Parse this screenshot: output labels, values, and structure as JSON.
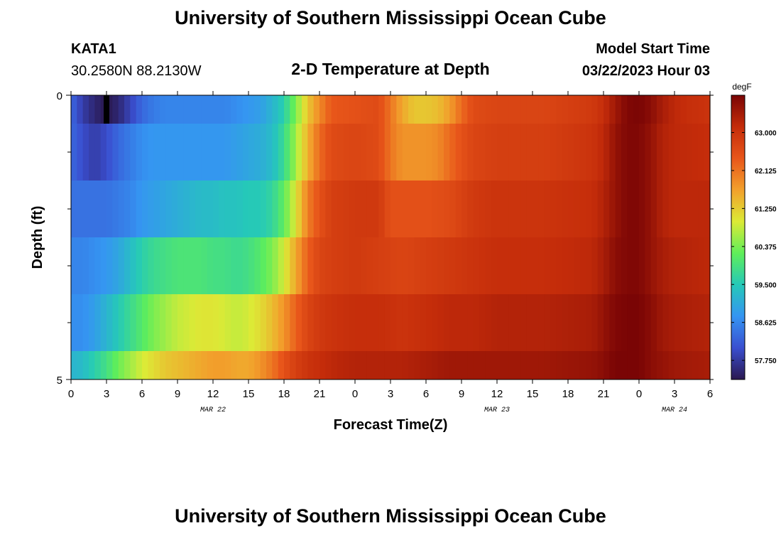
{
  "page": {
    "title": "University of Southern Mississippi Ocean Cube",
    "footer_title": "University of Southern Mississippi Ocean Cube"
  },
  "station": {
    "id": "KATA1",
    "coords": "30.2580N  88.2130W"
  },
  "model": {
    "label": "Model Start Time",
    "time": "03/22/2023 Hour 03"
  },
  "chart_data": {
    "type": "heatmap",
    "title": "2-D Temperature at Depth",
    "xlabel": "Forecast Time(Z)",
    "ylabel": "Depth (ft)",
    "x_range_hours": [
      0,
      54
    ],
    "y_range": [
      0,
      5
    ],
    "x_tick_labels": [
      "0",
      "3",
      "6",
      "9",
      "12",
      "15",
      "18",
      "21",
      "0",
      "3",
      "6",
      "9",
      "12",
      "15",
      "18",
      "21",
      "0",
      "3",
      "6"
    ],
    "y_tick_labels": [
      "0",
      "5"
    ],
    "date_labels": [
      {
        "text": "MAR 22",
        "hour": 12
      },
      {
        "text": "MAR 23",
        "hour": 36
      },
      {
        "text": "MAR 24",
        "hour": 51
      }
    ],
    "grid": false,
    "colorbar": {
      "unit": "degF",
      "min": 57.31,
      "max": 63.86,
      "tick_labels": [
        "57.750",
        "58.625",
        "59.500",
        "60.375",
        "61.250",
        "62.125",
        "63.000"
      ],
      "tick_values": [
        57.75,
        58.625,
        59.5,
        60.375,
        61.25,
        62.125,
        63.0
      ]
    },
    "depth_layers": [
      {
        "depth_range": [
          0,
          0.5
        ],
        "values": [
          [
            0,
            58.3
          ],
          [
            1,
            57.8
          ],
          [
            2,
            57.5
          ],
          [
            3,
            57.31
          ],
          [
            4,
            57.5
          ],
          [
            5,
            57.9
          ],
          [
            6,
            58.3
          ],
          [
            7,
            58.5
          ],
          [
            8,
            58.6
          ],
          [
            9,
            58.6
          ],
          [
            10,
            58.6
          ],
          [
            11,
            58.6
          ],
          [
            12,
            58.6
          ],
          [
            13,
            58.6
          ],
          [
            14,
            58.7
          ],
          [
            15,
            58.8
          ],
          [
            16,
            58.9
          ],
          [
            17,
            59.2
          ],
          [
            18,
            59.6
          ],
          [
            19,
            60.4
          ],
          [
            20,
            61.3
          ],
          [
            21,
            61.9
          ],
          [
            22,
            62.4
          ],
          [
            24,
            62.5
          ],
          [
            26,
            62.6
          ],
          [
            27,
            62.1
          ],
          [
            28,
            61.6
          ],
          [
            29,
            61.3
          ],
          [
            30,
            61.3
          ],
          [
            31,
            61.4
          ],
          [
            32,
            61.7
          ],
          [
            33,
            62.2
          ],
          [
            34,
            62.6
          ],
          [
            36,
            62.7
          ],
          [
            40,
            62.7
          ],
          [
            44,
            62.9
          ],
          [
            45,
            63.1
          ],
          [
            46,
            63.5
          ],
          [
            47,
            63.8
          ],
          [
            48,
            63.86
          ],
          [
            49,
            63.7
          ],
          [
            50,
            63.4
          ],
          [
            51,
            63.2
          ],
          [
            52,
            63.1
          ],
          [
            54,
            63.0
          ]
        ]
      },
      {
        "depth_range": [
          0.5,
          1.5
        ],
        "values": [
          [
            0,
            58.3
          ],
          [
            1,
            58.0
          ],
          [
            2,
            57.8
          ],
          [
            3,
            58.0
          ],
          [
            4,
            58.3
          ],
          [
            5,
            58.5
          ],
          [
            6,
            58.7
          ],
          [
            7,
            58.8
          ],
          [
            8,
            58.8
          ],
          [
            9,
            58.8
          ],
          [
            10,
            58.8
          ],
          [
            11,
            58.8
          ],
          [
            12,
            58.8
          ],
          [
            13,
            58.8
          ],
          [
            14,
            58.9
          ],
          [
            15,
            59.0
          ],
          [
            16,
            59.1
          ],
          [
            17,
            59.3
          ],
          [
            18,
            59.8
          ],
          [
            19,
            60.6
          ],
          [
            20,
            61.5
          ],
          [
            21,
            62.2
          ],
          [
            22,
            62.6
          ],
          [
            24,
            62.7
          ],
          [
            26,
            62.6
          ],
          [
            27,
            62.1
          ],
          [
            28,
            61.8
          ],
          [
            30,
            61.8
          ],
          [
            31,
            61.9
          ],
          [
            32,
            62.2
          ],
          [
            33,
            62.5
          ],
          [
            34,
            62.7
          ],
          [
            36,
            62.8
          ],
          [
            40,
            62.8
          ],
          [
            44,
            63.0
          ],
          [
            45,
            63.2
          ],
          [
            46,
            63.6
          ],
          [
            47,
            63.8
          ],
          [
            48,
            63.8
          ],
          [
            49,
            63.6
          ],
          [
            50,
            63.3
          ],
          [
            51,
            63.2
          ],
          [
            54,
            63.1
          ]
        ]
      },
      {
        "depth_range": [
          1.5,
          2.5
        ],
        "values": [
          [
            0,
            58.4
          ],
          [
            1,
            58.4
          ],
          [
            2,
            58.4
          ],
          [
            3,
            58.4
          ],
          [
            4,
            58.5
          ],
          [
            5,
            58.6
          ],
          [
            6,
            58.8
          ],
          [
            7,
            58.9
          ],
          [
            8,
            59.0
          ],
          [
            9,
            59.1
          ],
          [
            10,
            59.2
          ],
          [
            11,
            59.3
          ],
          [
            12,
            59.3
          ],
          [
            13,
            59.4
          ],
          [
            14,
            59.4
          ],
          [
            15,
            59.5
          ],
          [
            16,
            59.5
          ],
          [
            17,
            59.7
          ],
          [
            18,
            60.2
          ],
          [
            19,
            61.0
          ],
          [
            20,
            62.0
          ],
          [
            21,
            62.5
          ],
          [
            22,
            62.8
          ],
          [
            24,
            62.9
          ],
          [
            26,
            62.9
          ],
          [
            27,
            62.5
          ],
          [
            28,
            62.5
          ],
          [
            30,
            62.5
          ],
          [
            32,
            62.6
          ],
          [
            34,
            62.9
          ],
          [
            36,
            63.0
          ],
          [
            40,
            63.0
          ],
          [
            44,
            63.1
          ],
          [
            45,
            63.3
          ],
          [
            46,
            63.6
          ],
          [
            47,
            63.8
          ],
          [
            48,
            63.8
          ],
          [
            49,
            63.6
          ],
          [
            50,
            63.3
          ],
          [
            51,
            63.2
          ],
          [
            54,
            63.2
          ]
        ]
      },
      {
        "depth_range": [
          2.5,
          3.5
        ],
        "values": [
          [
            0,
            58.6
          ],
          [
            1,
            58.6
          ],
          [
            2,
            58.7
          ],
          [
            3,
            58.8
          ],
          [
            4,
            59.0
          ],
          [
            5,
            59.3
          ],
          [
            6,
            59.6
          ],
          [
            7,
            59.8
          ],
          [
            8,
            59.9
          ],
          [
            9,
            60.0
          ],
          [
            10,
            60.0
          ],
          [
            11,
            60.0
          ],
          [
            12,
            59.9
          ],
          [
            13,
            59.9
          ],
          [
            14,
            59.8
          ],
          [
            15,
            59.9
          ],
          [
            16,
            60.1
          ],
          [
            17,
            60.4
          ],
          [
            18,
            60.9
          ],
          [
            19,
            61.6
          ],
          [
            20,
            62.3
          ],
          [
            21,
            62.7
          ],
          [
            22,
            62.8
          ],
          [
            24,
            62.9
          ],
          [
            26,
            62.8
          ],
          [
            28,
            62.7
          ],
          [
            30,
            62.8
          ],
          [
            32,
            62.9
          ],
          [
            34,
            63.0
          ],
          [
            36,
            63.1
          ],
          [
            40,
            63.1
          ],
          [
            44,
            63.2
          ],
          [
            45,
            63.4
          ],
          [
            46,
            63.7
          ],
          [
            47,
            63.8
          ],
          [
            48,
            63.8
          ],
          [
            49,
            63.6
          ],
          [
            50,
            63.4
          ],
          [
            51,
            63.3
          ],
          [
            54,
            63.2
          ]
        ]
      },
      {
        "depth_range": [
          3.5,
          4.5
        ],
        "values": [
          [
            0,
            58.7
          ],
          [
            1,
            58.7
          ],
          [
            2,
            58.9
          ],
          [
            3,
            59.2
          ],
          [
            4,
            59.5
          ],
          [
            5,
            59.8
          ],
          [
            6,
            60.1
          ],
          [
            7,
            60.4
          ],
          [
            8,
            60.6
          ],
          [
            9,
            60.8
          ],
          [
            10,
            60.9
          ],
          [
            11,
            61.0
          ],
          [
            12,
            61.0
          ],
          [
            13,
            60.9
          ],
          [
            14,
            60.8
          ],
          [
            15,
            60.9
          ],
          [
            16,
            61.1
          ],
          [
            17,
            61.4
          ],
          [
            18,
            61.8
          ],
          [
            19,
            62.3
          ],
          [
            20,
            62.7
          ],
          [
            21,
            62.9
          ],
          [
            22,
            63.0
          ],
          [
            24,
            63.1
          ],
          [
            26,
            63.1
          ],
          [
            28,
            63.0
          ],
          [
            30,
            63.1
          ],
          [
            32,
            63.2
          ],
          [
            34,
            63.2
          ],
          [
            36,
            63.3
          ],
          [
            40,
            63.3
          ],
          [
            44,
            63.4
          ],
          [
            45,
            63.6
          ],
          [
            46,
            63.8
          ],
          [
            47,
            63.86
          ],
          [
            48,
            63.86
          ],
          [
            49,
            63.7
          ],
          [
            50,
            63.5
          ],
          [
            51,
            63.4
          ],
          [
            54,
            63.3
          ]
        ]
      },
      {
        "depth_range": [
          4.5,
          5
        ],
        "values": [
          [
            0,
            59.2
          ],
          [
            1,
            59.3
          ],
          [
            2,
            59.6
          ],
          [
            3,
            59.9
          ],
          [
            4,
            60.3
          ],
          [
            5,
            60.6
          ],
          [
            6,
            60.9
          ],
          [
            7,
            61.1
          ],
          [
            8,
            61.3
          ],
          [
            9,
            61.4
          ],
          [
            10,
            61.5
          ],
          [
            11,
            61.6
          ],
          [
            12,
            61.7
          ],
          [
            13,
            61.7
          ],
          [
            14,
            61.6
          ],
          [
            15,
            61.6
          ],
          [
            16,
            61.8
          ],
          [
            17,
            62.1
          ],
          [
            18,
            62.5
          ],
          [
            19,
            62.8
          ],
          [
            20,
            63.0
          ],
          [
            21,
            63.1
          ],
          [
            22,
            63.2
          ],
          [
            24,
            63.3
          ],
          [
            26,
            63.3
          ],
          [
            28,
            63.3
          ],
          [
            30,
            63.4
          ],
          [
            32,
            63.5
          ],
          [
            34,
            63.5
          ],
          [
            36,
            63.5
          ],
          [
            40,
            63.5
          ],
          [
            44,
            63.6
          ],
          [
            45,
            63.7
          ],
          [
            46,
            63.86
          ],
          [
            47,
            63.86
          ],
          [
            48,
            63.86
          ],
          [
            49,
            63.7
          ],
          [
            50,
            63.6
          ],
          [
            51,
            63.5
          ],
          [
            54,
            63.4
          ]
        ]
      }
    ],
    "annotation": {
      "type": "marker",
      "hour": 3,
      "depth_range": [
        0,
        0.5
      ],
      "color": "#000000"
    }
  },
  "colors": {
    "colormap": [
      "#2a1850",
      "#3a4fd0",
      "#3595f2",
      "#25c9b8",
      "#5fee5a",
      "#dcea36",
      "#f2a02c",
      "#e8561a",
      "#c42c0a",
      "#7a0505"
    ]
  }
}
